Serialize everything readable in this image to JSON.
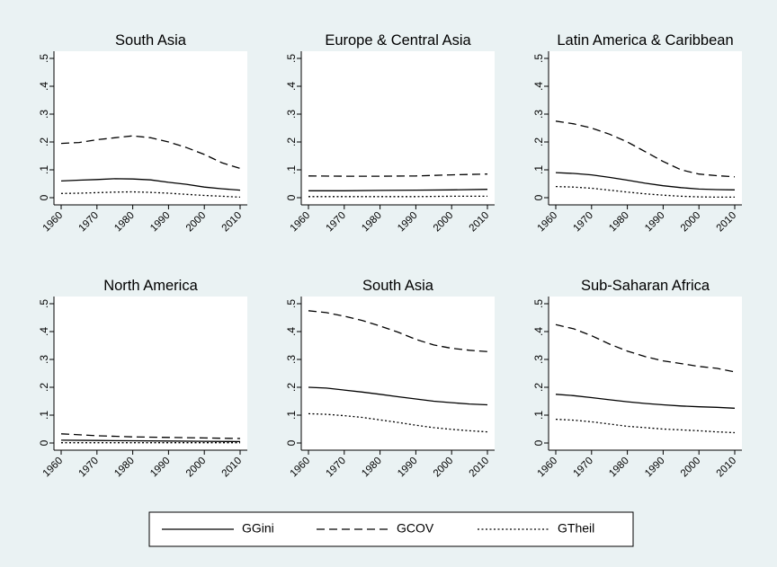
{
  "chart_data": {
    "type": "line",
    "legend_position": "bottom",
    "grid": false,
    "background": "#eaf2f3",
    "line_color": "#000000",
    "legend": [
      {
        "key": "gini",
        "label": "GGini",
        "dash": "solid"
      },
      {
        "key": "cov",
        "label": "GCOV",
        "dash": "dashed"
      },
      {
        "key": "theil",
        "label": "GTheil",
        "dash": "dotted"
      }
    ],
    "xlim": [
      1960,
      2010
    ],
    "ylim": [
      0,
      0.5
    ],
    "xticks": [
      1960,
      1970,
      1980,
      1990,
      2000,
      2010
    ],
    "yticks": [
      0,
      0.1,
      0.2,
      0.3,
      0.4,
      0.5
    ],
    "ytick_labels": [
      "0",
      ".1",
      ".2",
      ".3",
      ".4",
      ".5"
    ],
    "panels": [
      {
        "title": "South Asia",
        "x": [
          1960,
          1965,
          1970,
          1975,
          1980,
          1985,
          1990,
          1995,
          2000,
          2005,
          2010
        ],
        "series": [
          {
            "key": "gini",
            "values": [
              0.06,
              0.063,
              0.065,
              0.068,
              0.067,
              0.064,
              0.055,
              0.048,
              0.038,
              0.032,
              0.027
            ]
          },
          {
            "key": "cov",
            "values": [
              0.195,
              0.198,
              0.208,
              0.215,
              0.222,
              0.215,
              0.2,
              0.18,
              0.155,
              0.125,
              0.105
            ]
          },
          {
            "key": "theil",
            "values": [
              0.015,
              0.016,
              0.018,
              0.02,
              0.021,
              0.019,
              0.016,
              0.012,
              0.008,
              0.005,
              0.002
            ]
          }
        ]
      },
      {
        "title": "Europe & Central Asia",
        "x": [
          1960,
          1970,
          1980,
          1990,
          2000,
          2010
        ],
        "series": [
          {
            "key": "gini",
            "values": [
              0.025,
              0.025,
              0.026,
              0.027,
              0.028,
              0.03
            ]
          },
          {
            "key": "cov",
            "values": [
              0.078,
              0.077,
              0.077,
              0.078,
              0.082,
              0.085
            ]
          },
          {
            "key": "theil",
            "values": [
              0.004,
              0.004,
              0.004,
              0.004,
              0.005,
              0.005
            ]
          }
        ]
      },
      {
        "title": "Latin America & Caribbean",
        "x": [
          1960,
          1965,
          1970,
          1975,
          1980,
          1985,
          1990,
          1995,
          2000,
          2005,
          2010
        ],
        "series": [
          {
            "key": "gini",
            "values": [
              0.09,
              0.087,
              0.082,
              0.073,
              0.063,
              0.052,
              0.043,
              0.036,
              0.031,
              0.029,
              0.028
            ]
          },
          {
            "key": "cov",
            "values": [
              0.275,
              0.265,
              0.25,
              0.228,
              0.2,
              0.165,
              0.13,
              0.1,
              0.085,
              0.079,
              0.075
            ]
          },
          {
            "key": "theil",
            "values": [
              0.04,
              0.038,
              0.034,
              0.027,
              0.02,
              0.014,
              0.009,
              0.005,
              0.003,
              0.002,
              0.002
            ]
          }
        ]
      },
      {
        "title": "North America",
        "x": [
          1960,
          1970,
          1980,
          1990,
          2000,
          2010
        ],
        "series": [
          {
            "key": "gini",
            "values": [
              0.01,
              0.009,
              0.008,
              0.007,
              0.006,
              0.005
            ]
          },
          {
            "key": "cov",
            "values": [
              0.033,
              0.026,
              0.022,
              0.02,
              0.018,
              0.016
            ]
          },
          {
            "key": "theil",
            "values": [
              0.001,
              0.001,
              0.001,
              0.001,
              0.001,
              0.001
            ]
          }
        ]
      },
      {
        "title": "South Asia",
        "x": [
          1960,
          1965,
          1970,
          1975,
          1980,
          1985,
          1990,
          1995,
          2000,
          2005,
          2010
        ],
        "series": [
          {
            "key": "gini",
            "values": [
              0.2,
              0.197,
              0.19,
              0.183,
              0.175,
              0.166,
              0.158,
              0.15,
              0.145,
              0.14,
              0.137
            ]
          },
          {
            "key": "cov",
            "values": [
              0.475,
              0.468,
              0.455,
              0.44,
              0.42,
              0.398,
              0.372,
              0.352,
              0.34,
              0.333,
              0.328
            ]
          },
          {
            "key": "theil",
            "values": [
              0.105,
              0.103,
              0.098,
              0.092,
              0.083,
              0.074,
              0.064,
              0.055,
              0.049,
              0.044,
              0.04
            ]
          }
        ]
      },
      {
        "title": "Sub-Saharan Africa",
        "x": [
          1960,
          1965,
          1970,
          1975,
          1980,
          1985,
          1990,
          1995,
          2000,
          2005,
          2010
        ],
        "series": [
          {
            "key": "gini",
            "values": [
              0.175,
              0.17,
              0.163,
              0.155,
              0.148,
              0.142,
              0.137,
              0.133,
              0.13,
              0.128,
              0.125
            ]
          },
          {
            "key": "cov",
            "values": [
              0.425,
              0.41,
              0.385,
              0.355,
              0.33,
              0.31,
              0.295,
              0.285,
              0.275,
              0.268,
              0.255
            ]
          },
          {
            "key": "theil",
            "values": [
              0.085,
              0.082,
              0.076,
              0.068,
              0.06,
              0.055,
              0.05,
              0.047,
              0.044,
              0.04,
              0.037
            ]
          }
        ]
      }
    ]
  }
}
